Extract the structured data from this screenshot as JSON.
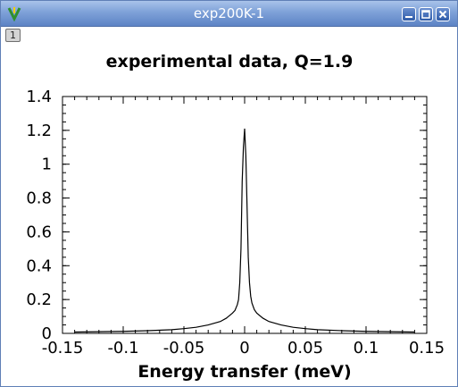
{
  "window": {
    "title": "exp200K-1",
    "app_icon": "vdu-app-icon",
    "controls": [
      "minimize-icon",
      "maximize-icon",
      "close-icon"
    ]
  },
  "tab": {
    "label": "1"
  },
  "colors": {
    "titlebar": "#7ea1d8",
    "line": "#000000",
    "background": "#ffffff"
  },
  "chart_data": {
    "type": "line",
    "title": "experimental data, Q=1.9",
    "xlabel": "Energy transfer (meV)",
    "ylabel": "",
    "xlim": [
      -0.15,
      0.15
    ],
    "ylim": [
      0,
      1.4
    ],
    "xticks": [
      -0.15,
      -0.1,
      -0.05,
      0,
      0.05,
      0.1,
      0.15
    ],
    "xtick_labels": [
      "-0.15",
      "-0.1",
      "-0.05",
      "0",
      "0.05",
      "0.1",
      "0.15"
    ],
    "yticks": [
      0,
      0.2,
      0.4,
      0.6,
      0.8,
      1,
      1.2,
      1.4
    ],
    "ytick_labels": [
      "0",
      "0.2",
      "0.4",
      "0.6",
      "0.8",
      "1",
      "1.2",
      "1.4"
    ],
    "grid": false,
    "legend": "none",
    "series": [
      {
        "x": [
          -0.14,
          -0.12,
          -0.1,
          -0.08,
          -0.06,
          -0.05,
          -0.04,
          -0.03,
          -0.02,
          -0.015,
          -0.01,
          -0.008,
          -0.006,
          -0.005,
          -0.004,
          -0.003,
          -0.002,
          -0.001,
          0,
          0.001,
          0.002,
          0.003,
          0.004,
          0.005,
          0.006,
          0.008,
          0.01,
          0.015,
          0.02,
          0.03,
          0.04,
          0.05,
          0.06,
          0.08,
          0.1,
          0.12,
          0.14
        ],
        "y": [
          0.008,
          0.01,
          0.012,
          0.016,
          0.022,
          0.028,
          0.036,
          0.05,
          0.07,
          0.09,
          0.12,
          0.135,
          0.17,
          0.2,
          0.3,
          0.5,
          0.9,
          1.1,
          1.21,
          1.05,
          0.75,
          0.45,
          0.3,
          0.22,
          0.18,
          0.14,
          0.12,
          0.09,
          0.07,
          0.05,
          0.036,
          0.028,
          0.022,
          0.016,
          0.012,
          0.01,
          0.008
        ]
      }
    ]
  }
}
